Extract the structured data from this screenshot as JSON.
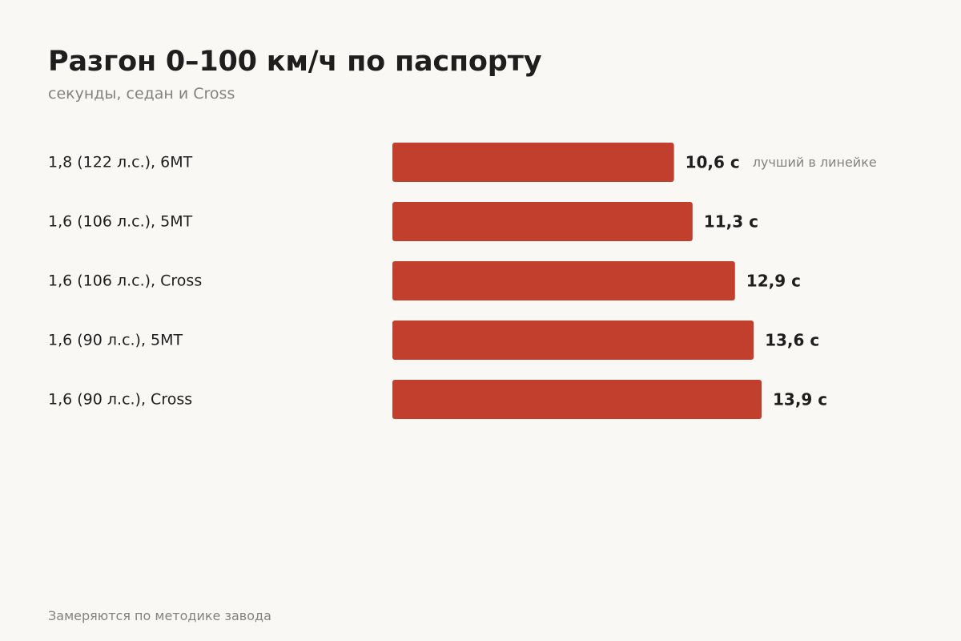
{
  "header": {
    "title": "Разгон 0–100 км/ч по паспорту",
    "subtitle": "секунды, седан и Cross"
  },
  "footer": {
    "note": "Замеряются по методике завода"
  },
  "colors": {
    "bar": "#c23f2d",
    "background": "#faf8f4",
    "text": "#1e1e1e",
    "muted": "#85827d"
  },
  "chart_data": {
    "type": "bar",
    "orientation": "horizontal",
    "categories": [
      "1,8 (122 л.с.), 6MT",
      "1,6 (106 л.с.), 5MT",
      "1,6 (106 л.с.), Cross",
      "1,6 (90 л.с.), 5MT",
      "1,6 (90 л.с.), Cross"
    ],
    "values": [
      10.6,
      11.3,
      12.9,
      13.6,
      13.9
    ],
    "value_labels": [
      "10,6 с",
      "11,3 с",
      "12,9 с",
      "13,6 с",
      "13,9 с"
    ],
    "annotations": [
      {
        "category_index": 0,
        "text": "лучший в линейке"
      }
    ],
    "xlim": [
      0,
      13.9
    ],
    "grid": false,
    "legend": "none"
  }
}
